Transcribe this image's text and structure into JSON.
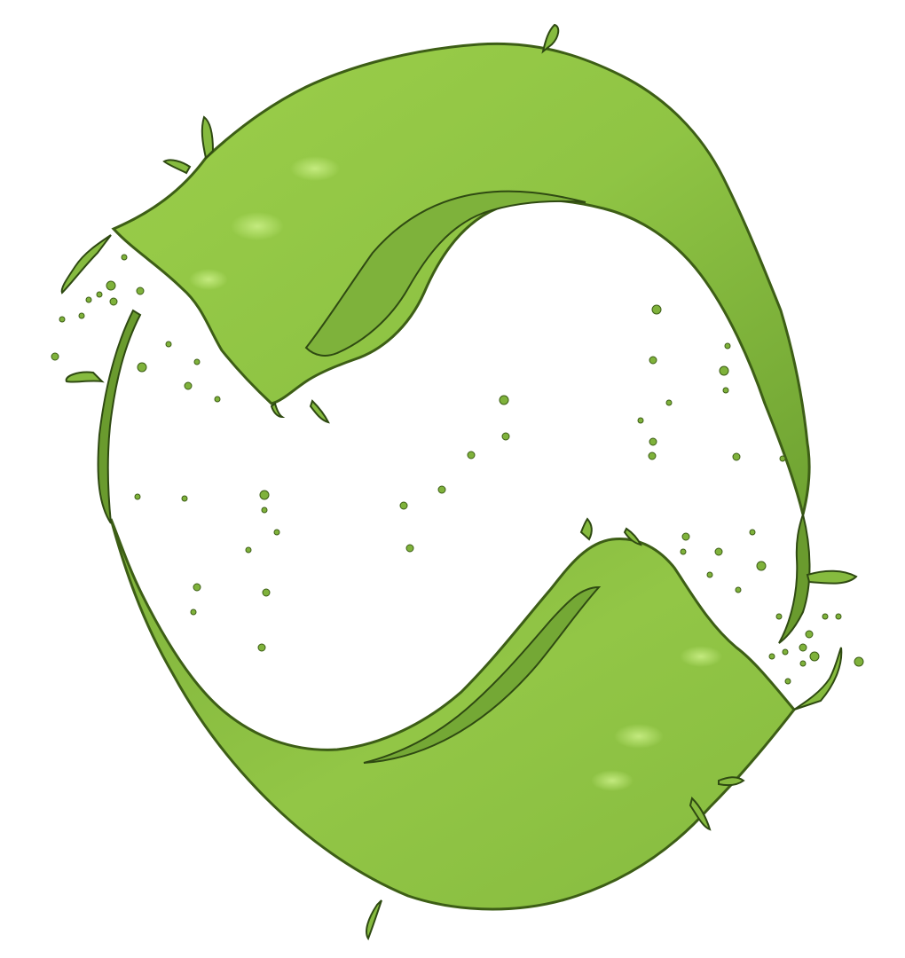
{
  "scene": {
    "subject": "green-liquid-splash-ring",
    "colors": {
      "background": "#ffffff",
      "liquid_light": "#a4d64f",
      "liquid_mid": "#86bb3f",
      "liquid_dark": "#4f7a1e",
      "liquid_edge": "#2f4a12",
      "highlight": "#c9ee85"
    }
  }
}
